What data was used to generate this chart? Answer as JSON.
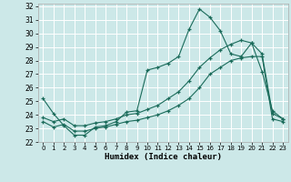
{
  "title": "",
  "xlabel": "Humidex (Indice chaleur)",
  "bg_color": "#cce8e8",
  "grid_color": "#ffffff",
  "line_color": "#1a6b5a",
  "xlim": [
    -0.5,
    23.5
  ],
  "ylim": [
    22,
    32.2
  ],
  "xticks": [
    0,
    1,
    2,
    3,
    4,
    5,
    6,
    7,
    8,
    9,
    10,
    11,
    12,
    13,
    14,
    15,
    16,
    17,
    18,
    19,
    20,
    21,
    22,
    23
  ],
  "yticks": [
    22,
    23,
    24,
    25,
    26,
    27,
    28,
    29,
    30,
    31,
    32
  ],
  "series1_x": [
    0,
    1,
    2,
    3,
    4,
    5,
    6,
    7,
    8,
    9,
    10,
    11,
    12,
    13,
    14,
    15,
    16,
    17,
    18,
    19,
    20,
    21,
    22,
    23
  ],
  "series1_y": [
    25.2,
    24.1,
    23.2,
    22.5,
    22.5,
    23.1,
    23.2,
    23.5,
    24.2,
    24.3,
    27.3,
    27.5,
    27.8,
    28.3,
    30.3,
    31.8,
    31.2,
    30.2,
    28.5,
    28.3,
    29.3,
    27.2,
    24.3,
    23.7
  ],
  "series2_x": [
    0,
    1,
    2,
    3,
    4,
    5,
    6,
    7,
    8,
    9,
    10,
    11,
    12,
    13,
    14,
    15,
    16,
    17,
    18,
    19,
    20,
    21,
    22,
    23
  ],
  "series2_y": [
    23.8,
    23.5,
    23.7,
    23.2,
    23.2,
    23.4,
    23.5,
    23.7,
    24.0,
    24.1,
    24.4,
    24.7,
    25.2,
    25.7,
    26.5,
    27.5,
    28.2,
    28.8,
    29.2,
    29.5,
    29.3,
    28.5,
    24.1,
    23.7
  ],
  "series3_x": [
    0,
    1,
    2,
    3,
    4,
    5,
    6,
    7,
    8,
    9,
    10,
    11,
    12,
    13,
    14,
    15,
    16,
    17,
    18,
    19,
    20,
    21,
    22,
    23
  ],
  "series3_y": [
    23.5,
    23.1,
    23.3,
    22.8,
    22.8,
    23.0,
    23.1,
    23.3,
    23.5,
    23.6,
    23.8,
    24.0,
    24.3,
    24.7,
    25.2,
    26.0,
    27.0,
    27.5,
    28.0,
    28.2,
    28.3,
    28.3,
    23.7,
    23.5
  ]
}
